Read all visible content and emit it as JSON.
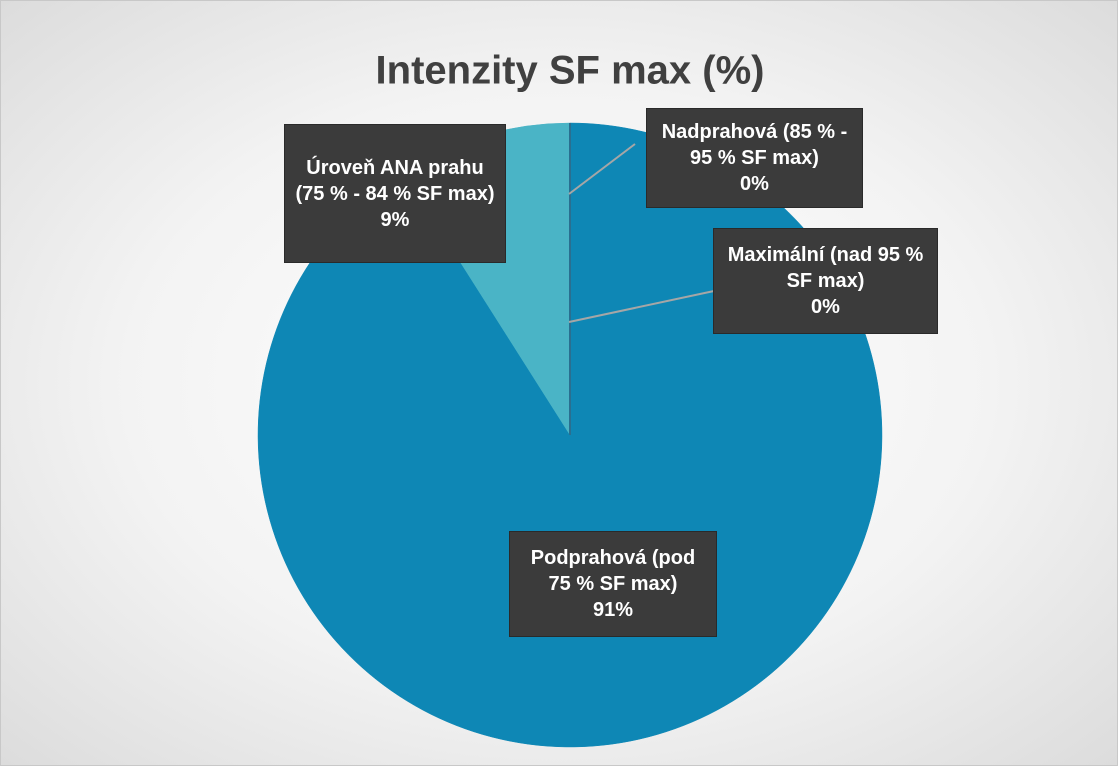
{
  "chart_data": {
    "type": "pie",
    "title": "Intenzity SF max (%)",
    "categories": [
      "Podprahová (pod 75 % SF max)",
      "Úroveň ANA prahu (75 % - 84 % SF max)",
      "Nadprahová (85 % - 95 % SF max)",
      "Maximální (nad 95 % SF max)"
    ],
    "values": [
      91,
      9,
      0,
      0
    ],
    "value_labels": [
      "91%",
      "9%",
      "0%",
      "0%"
    ],
    "colors": [
      "#0e87b5",
      "#4ab4c6",
      "#1aa36e",
      "#2a6f90"
    ]
  }
}
